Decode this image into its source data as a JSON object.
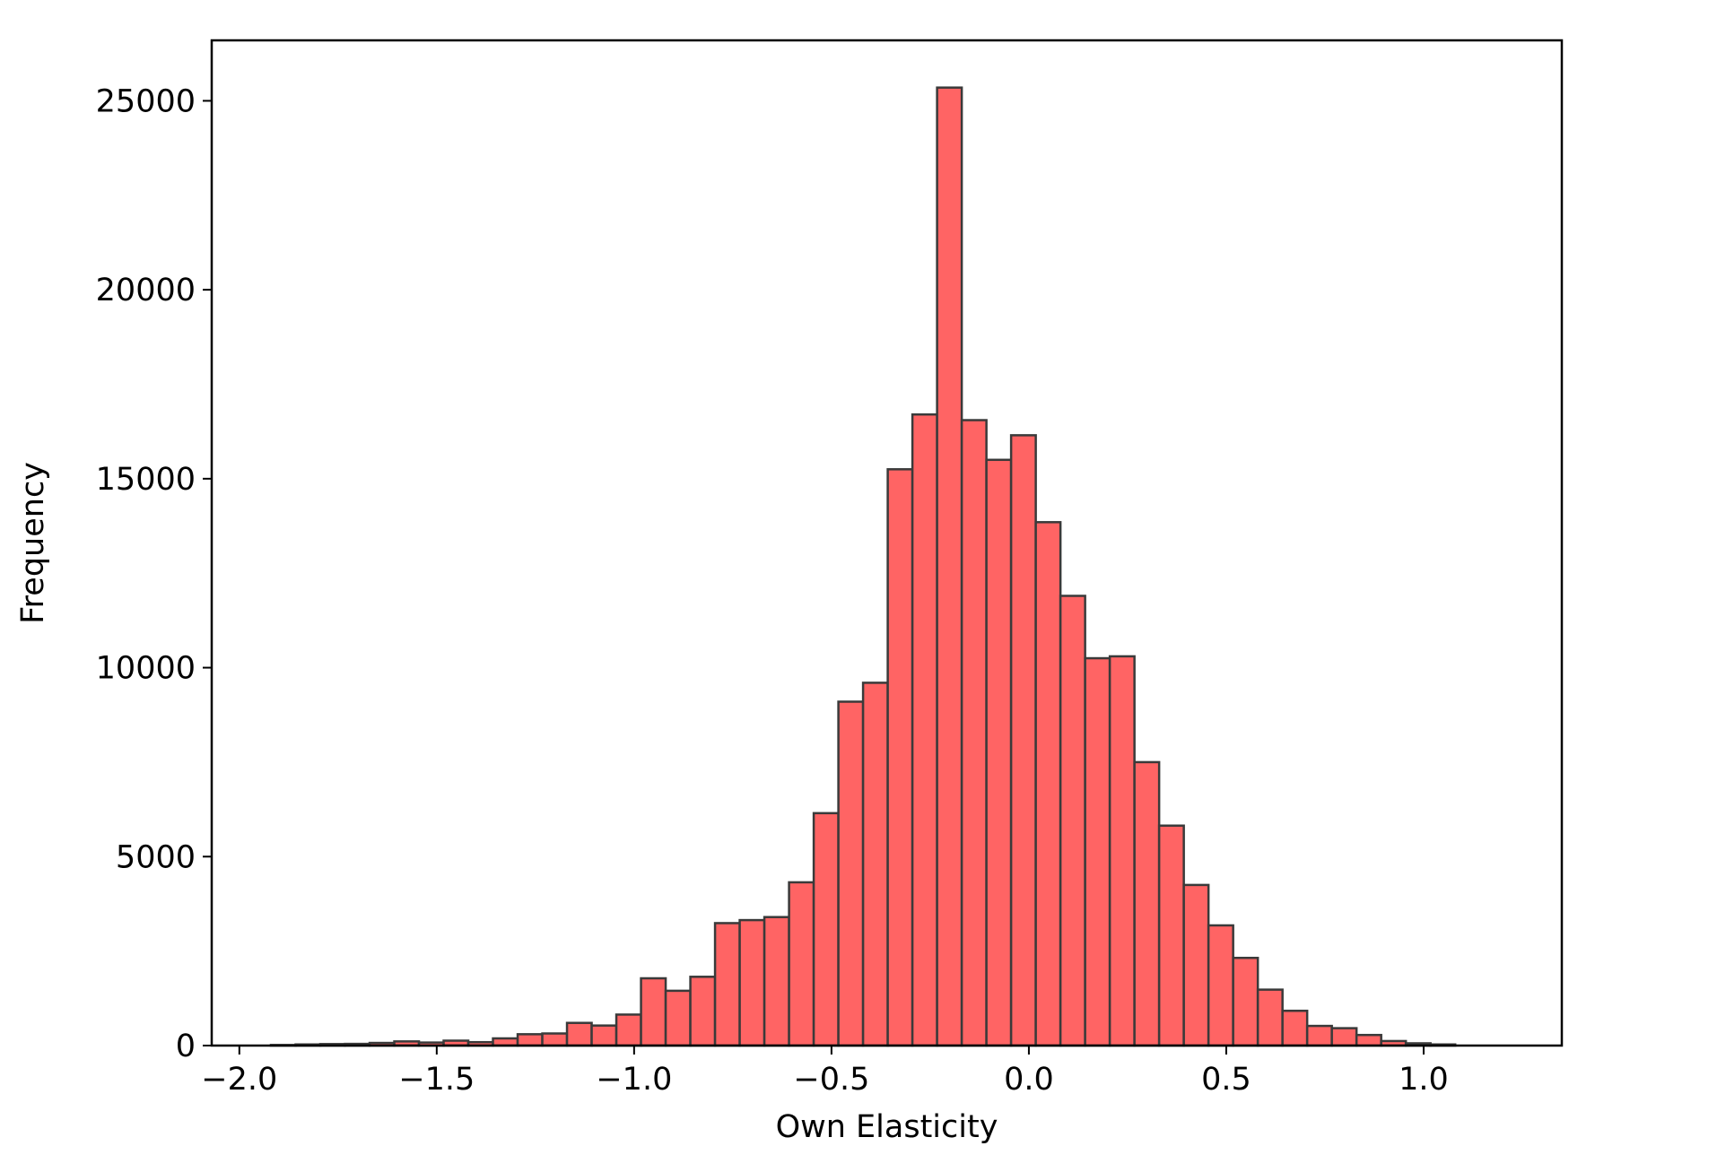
{
  "chart_data": {
    "type": "bar",
    "title": "",
    "xlabel": "Own Elasticity",
    "ylabel": "Frequency",
    "xlim": [
      -2.07,
      1.35
    ],
    "ylim": [
      0,
      26600
    ],
    "grid": false,
    "bar_color": "#ff6464",
    "edge_color": "#3a3a3a",
    "bin_start": -1.92,
    "bin_width": 0.0625,
    "values": [
      15,
      30,
      40,
      45,
      70,
      110,
      80,
      130,
      90,
      190,
      300,
      320,
      600,
      530,
      820,
      1780,
      1450,
      1820,
      3240,
      3320,
      3400,
      4320,
      6150,
      9100,
      9600,
      15250,
      16700,
      25350,
      16550,
      15500,
      16150,
      13850,
      11900,
      10250,
      10300,
      7500,
      5820,
      4250,
      3180,
      2320,
      1480,
      920,
      520,
      460,
      280,
      120,
      60,
      30
    ],
    "x_ticks": [
      {
        "value": -2.0,
        "label": "−2.0"
      },
      {
        "value": -1.5,
        "label": "−1.5"
      },
      {
        "value": -1.0,
        "label": "−1.0"
      },
      {
        "value": -0.5,
        "label": "−0.5"
      },
      {
        "value": 0.0,
        "label": "0.0"
      },
      {
        "value": 0.5,
        "label": "0.5"
      },
      {
        "value": 1.0,
        "label": "1.0"
      }
    ],
    "y_ticks": [
      {
        "value": 0,
        "label": "0"
      },
      {
        "value": 5000,
        "label": "5000"
      },
      {
        "value": 10000,
        "label": "10000"
      },
      {
        "value": 15000,
        "label": "15000"
      },
      {
        "value": 20000,
        "label": "20000"
      },
      {
        "value": 25000,
        "label": "25000"
      }
    ]
  }
}
